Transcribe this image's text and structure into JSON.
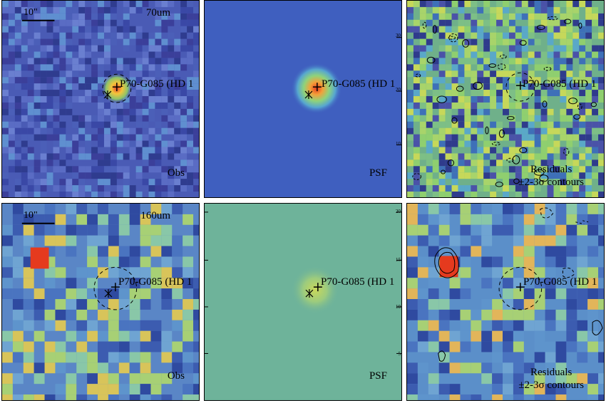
{
  "source_label": "P70-G085 (HD 1",
  "scale_bar_label": "10\"",
  "rows": [
    {
      "band": "70um",
      "obs_label": "Obs",
      "psf_label": "PSF",
      "residual_label": "Residuals",
      "contour_label": "±2-3σ contours"
    },
    {
      "band": "160um",
      "obs_label": "Obs",
      "psf_label": "PSF",
      "residual_label": "Residuals",
      "contour_label": "±2-3σ contours"
    }
  ],
  "psf_axis_ticks": [
    "30",
    "20",
    "10",
    "20",
    "15",
    "10",
    "5"
  ],
  "colors": {
    "obs_70_bg": "#4a5bb5",
    "psf_70_bg": "#3f5fbf",
    "resid_70_bg": "#6fb08a",
    "obs_160_bg": "#5a86c6",
    "psf_160_bg": "#6eb39a",
    "resid_160_bg": "#5b8fc9",
    "peak": "#e53a1e",
    "contour": "#000000"
  }
}
